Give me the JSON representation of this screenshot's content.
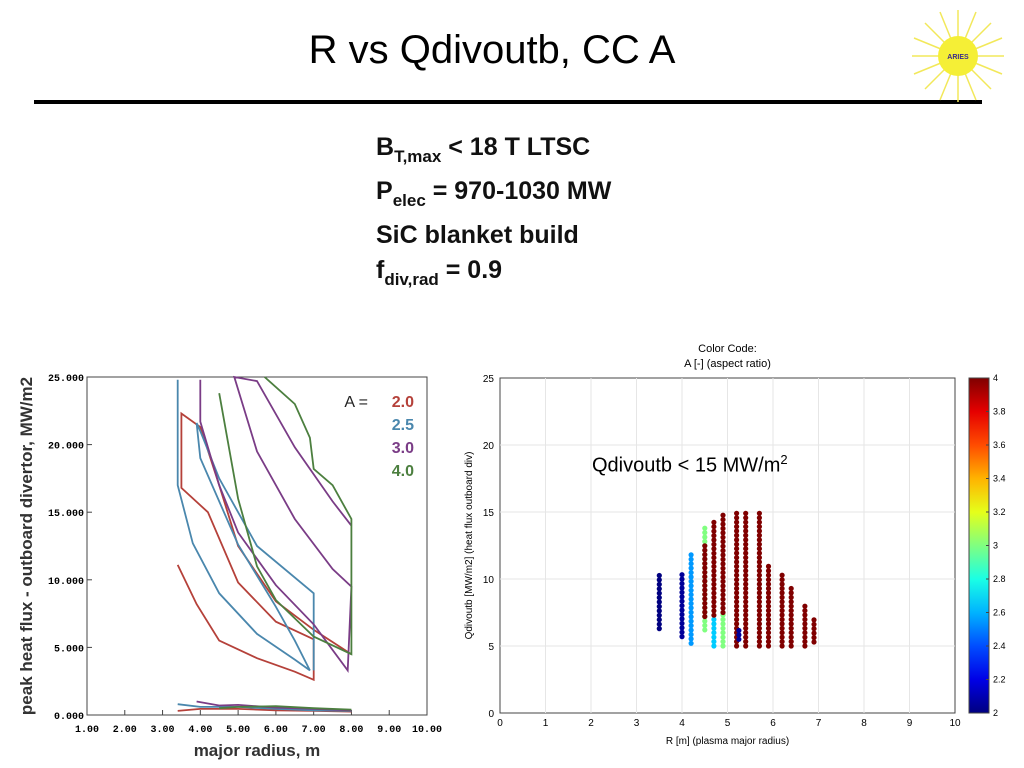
{
  "slide": {
    "title": "R vs Qdivoutb, CC A",
    "logo_text": "ARIES",
    "specs": {
      "line1": {
        "main": "B",
        "sub": "T,max",
        "rest": "< 18 T LTSC"
      },
      "line2": {
        "main": "P",
        "sub": "elec",
        "rest": "= 970-1030 MW"
      },
      "line3": {
        "text": "SiC blanket build"
      },
      "line4": {
        "main": "f",
        "sub": "div,rad",
        "rest": "= 0.9"
      }
    },
    "annotation": {
      "text": "Qdivoutb < 15 MW/m",
      "sup": "2"
    }
  },
  "chart_data": [
    {
      "type": "line",
      "xlabel": "major radius, m",
      "ylabel": "peak heat flux - outboard divertor, MW/m2",
      "xlim": [
        1,
        10
      ],
      "ylim": [
        0,
        25
      ],
      "xticks": [
        "1.00",
        "2.00",
        "3.00",
        "4.00",
        "5.00",
        "6.00",
        "7.00",
        "8.00",
        "9.00",
        "10.00"
      ],
      "yticks": [
        "0.000",
        "5.000",
        "10.000",
        "15.000",
        "20.000",
        "25.000"
      ],
      "legend": {
        "title": "A =",
        "placement": "top-right"
      },
      "series": [
        {
          "name": "2.0",
          "color": "#b5413a",
          "segments": [
            [
              [
                3.4,
                11.1
              ],
              [
                3.9,
                8.2
              ],
              [
                4.5,
                5.5
              ],
              [
                5.5,
                4.2
              ],
              [
                6.5,
                3.2
              ],
              [
                7.0,
                2.6
              ],
              [
                7.0,
                5.6
              ],
              [
                6.0,
                6.9
              ],
              [
                5.0,
                9.8
              ],
              [
                4.2,
                15.0
              ],
              [
                3.5,
                16.8
              ],
              [
                3.5,
                22.3
              ],
              [
                4.0,
                21.3
              ],
              [
                4.5,
                17.0
              ],
              [
                5.0,
                12.5
              ],
              [
                6.0,
                8.4
              ],
              [
                7.0,
                6.3
              ],
              [
                8.0,
                4.5
              ]
            ],
            [
              [
                3.4,
                0.3
              ],
              [
                4.0,
                0.45
              ],
              [
                5.0,
                0.45
              ],
              [
                6.0,
                0.35
              ],
              [
                7.0,
                0.3
              ],
              [
                8.0,
                0.25
              ]
            ]
          ]
        },
        {
          "name": "2.5",
          "color": "#4a87ad",
          "segments": [
            [
              [
                3.4,
                24.8
              ],
              [
                3.4,
                17.0
              ],
              [
                3.8,
                12.7
              ],
              [
                4.5,
                9.0
              ],
              [
                5.5,
                6.0
              ],
              [
                6.5,
                4.1
              ],
              [
                6.9,
                3.3
              ],
              [
                6.5,
                5.5
              ],
              [
                6.0,
                8.0
              ],
              [
                5.0,
                12.6
              ],
              [
                4.0,
                19.0
              ],
              [
                3.9,
                21.6
              ],
              [
                4.0,
                21.0
              ],
              [
                4.5,
                17.5
              ],
              [
                5.5,
                12.5
              ],
              [
                7.0,
                9.0
              ],
              [
                7.0,
                3.3
              ]
            ],
            [
              [
                3.4,
                0.8
              ],
              [
                4.0,
                0.6
              ],
              [
                5.0,
                0.6
              ],
              [
                6.0,
                0.45
              ],
              [
                7.0,
                0.35
              ],
              [
                8.0,
                0.3
              ]
            ]
          ]
        },
        {
          "name": "3.0",
          "color": "#7a3c86",
          "segments": [
            [
              [
                4.0,
                24.8
              ],
              [
                4.0,
                21.7
              ],
              [
                4.5,
                17.0
              ],
              [
                5.0,
                13.5
              ],
              [
                6.0,
                9.6
              ],
              [
                7.0,
                6.7
              ],
              [
                7.9,
                3.3
              ],
              [
                8.0,
                9.5
              ],
              [
                7.5,
                10.8
              ],
              [
                6.5,
                14.5
              ],
              [
                5.5,
                19.5
              ],
              [
                4.9,
                25.0
              ],
              [
                5.5,
                24.7
              ],
              [
                6.5,
                19.8
              ],
              [
                7.5,
                15.8
              ],
              [
                8.0,
                14.0
              ]
            ],
            [
              [
                3.9,
                1.0
              ],
              [
                4.5,
                0.7
              ],
              [
                5.0,
                0.75
              ],
              [
                6.0,
                0.55
              ],
              [
                7.0,
                0.45
              ],
              [
                8.0,
                0.35
              ]
            ]
          ]
        },
        {
          "name": "4.0",
          "color": "#4c7f3f",
          "segments": [
            [
              [
                4.5,
                23.8
              ],
              [
                5.0,
                16.0
              ],
              [
                5.5,
                11.0
              ],
              [
                6.0,
                8.5
              ],
              [
                7.0,
                5.8
              ],
              [
                8.0,
                4.5
              ],
              [
                8.0,
                14.5
              ],
              [
                7.5,
                17.0
              ],
              [
                7.0,
                18.2
              ],
              [
                6.9,
                20.5
              ],
              [
                6.5,
                23.0
              ],
              [
                5.7,
                25.0
              ]
            ],
            [
              [
                4.5,
                0.5
              ],
              [
                5.0,
                0.6
              ],
              [
                6.0,
                0.65
              ],
              [
                7.0,
                0.5
              ],
              [
                8.0,
                0.4
              ]
            ]
          ]
        }
      ]
    },
    {
      "type": "scatter",
      "title": "Color Code:",
      "subtitle": "A [-] (aspect ratio)",
      "xlabel": "R [m] (plasma major radius)",
      "ylabel": "Qdivoutb [MW/m2] (heat flux outboard div)",
      "xlim": [
        0,
        10
      ],
      "ylim": [
        0,
        25
      ],
      "xticks": [
        "0",
        "1",
        "2",
        "3",
        "4",
        "5",
        "6",
        "7",
        "8",
        "9",
        "10"
      ],
      "yticks": [
        "0",
        "5",
        "10",
        "15",
        "20",
        "25"
      ],
      "colorbar": {
        "range": [
          2,
          4
        ],
        "ticks": [
          "2",
          "2.2",
          "2.4",
          "2.6",
          "2.8",
          "3",
          "3.2",
          "3.4",
          "3.6",
          "3.8",
          "4"
        ]
      },
      "columns": [
        {
          "x": 3.5,
          "y": [
            6.3,
            10.5
          ],
          "A": 2.0
        },
        {
          "x": 4.0,
          "y": [
            5.7,
            10.5
          ],
          "A": 2.05
        },
        {
          "x": 4.2,
          "y": [
            5.2,
            12.1
          ],
          "A": 2.55
        },
        {
          "x": 4.5,
          "y": [
            6.2,
            13.8
          ],
          "A": 3.0
        },
        {
          "x": 4.5,
          "y": [
            7.2,
            12.8
          ],
          "A": 4.0
        },
        {
          "x": 4.7,
          "y": [
            5.0,
            7.3
          ],
          "A": 2.65
        },
        {
          "x": 4.7,
          "y": [
            7.3,
            14.5
          ],
          "A": 4.0
        },
        {
          "x": 4.9,
          "y": [
            5.0,
            7.5
          ],
          "A": 3.0
        },
        {
          "x": 4.9,
          "y": [
            7.5,
            15.0
          ],
          "A": 4.0
        },
        {
          "x": 5.2,
          "y": [
            5.0,
            15.0
          ],
          "A": 4.0
        },
        {
          "x": 5.25,
          "y": [
            5.5,
            6.2
          ],
          "A": 2.05
        },
        {
          "x": 5.4,
          "y": [
            5.0,
            15.0
          ],
          "A": 4.0
        },
        {
          "x": 5.7,
          "y": [
            5.0,
            15.0
          ],
          "A": 4.0
        },
        {
          "x": 5.9,
          "y": [
            5.0,
            11.2
          ],
          "A": 4.0
        },
        {
          "x": 6.2,
          "y": [
            5.0,
            10.5
          ],
          "A": 4.0
        },
        {
          "x": 6.4,
          "y": [
            5.0,
            9.3
          ],
          "A": 4.0
        },
        {
          "x": 6.7,
          "y": [
            5.0,
            8.0
          ],
          "A": 4.0
        },
        {
          "x": 6.9,
          "y": [
            5.3,
            7.0
          ],
          "A": 4.0
        }
      ]
    }
  ]
}
